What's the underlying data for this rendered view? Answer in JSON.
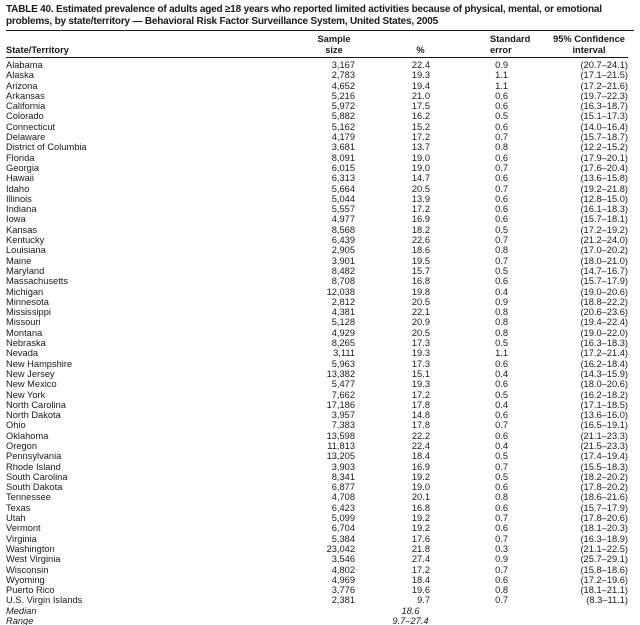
{
  "title": "TABLE 40. Estimated prevalence of adults aged ≥18 years who reported limited activities because of physical, mental, or emotional problems, by state/territory — Behavioral Risk Factor Surveillance System, United States, 2005",
  "table": {
    "header": {
      "state": "State/Territory",
      "sample": [
        "Sample",
        "size"
      ],
      "pct": "%",
      "se": [
        "Standard",
        "error"
      ],
      "ci": [
        "95% Confidence",
        "interval"
      ]
    },
    "rows": [
      {
        "state": "Alabama",
        "sample": "3,167",
        "pct": "22.4",
        "se": "0.9",
        "ci": "(20.7–24.1)"
      },
      {
        "state": "Alaska",
        "sample": "2,783",
        "pct": "19.3",
        "se": "1.1",
        "ci": "(17.1–21.5)"
      },
      {
        "state": "Arizona",
        "sample": "4,652",
        "pct": "19.4",
        "se": "1.1",
        "ci": "(17.2–21.6)"
      },
      {
        "state": "Arkansas",
        "sample": "5,216",
        "pct": "21.0",
        "se": "0.6",
        "ci": "(19.7–22.3)"
      },
      {
        "state": "California",
        "sample": "5,972",
        "pct": "17.5",
        "se": "0.6",
        "ci": "(16.3–18.7)"
      },
      {
        "state": "Colorado",
        "sample": "5,882",
        "pct": "16.2",
        "se": "0.5",
        "ci": "(15.1–17.3)"
      },
      {
        "state": "Connecticut",
        "sample": "5,162",
        "pct": "15.2",
        "se": "0.6",
        "ci": "(14.0–16.4)"
      },
      {
        "state": "Delaware",
        "sample": "4,179",
        "pct": "17.2",
        "se": "0.7",
        "ci": "(15.7–18.7)"
      },
      {
        "state": "District of Columbia",
        "sample": "3,681",
        "pct": "13.7",
        "se": "0.8",
        "ci": "(12.2–15.2)"
      },
      {
        "state": "Florida",
        "sample": "8,091",
        "pct": "19.0",
        "se": "0.6",
        "ci": "(17.9–20.1)"
      },
      {
        "state": "Georgia",
        "sample": "6,015",
        "pct": "19.0",
        "se": "0.7",
        "ci": "(17.6–20.4)"
      },
      {
        "state": "Hawaii",
        "sample": "6,313",
        "pct": "14.7",
        "se": "0.6",
        "ci": "(13.6–15.8)"
      },
      {
        "state": "Idaho",
        "sample": "5,664",
        "pct": "20.5",
        "se": "0.7",
        "ci": "(19.2–21.8)"
      },
      {
        "state": "Illinois",
        "sample": "5,044",
        "pct": "13.9",
        "se": "0.6",
        "ci": "(12.8–15.0)"
      },
      {
        "state": "Indiana",
        "sample": "5,557",
        "pct": "17.2",
        "se": "0.6",
        "ci": "(16.1–18.3)"
      },
      {
        "state": "Iowa",
        "sample": "4,977",
        "pct": "16.9",
        "se": "0.6",
        "ci": "(15.7–18.1)"
      },
      {
        "state": "Kansas",
        "sample": "8,568",
        "pct": "18.2",
        "se": "0.5",
        "ci": "(17.2–19.2)"
      },
      {
        "state": "Kentucky",
        "sample": "6,439",
        "pct": "22.6",
        "se": "0.7",
        "ci": "(21.2–24.0)"
      },
      {
        "state": "Louisiana",
        "sample": "2,905",
        "pct": "18.6",
        "se": "0.8",
        "ci": "(17.0–20.2)"
      },
      {
        "state": "Maine",
        "sample": "3,901",
        "pct": "19.5",
        "se": "0.7",
        "ci": "(18.0–21.0)"
      },
      {
        "state": "Maryland",
        "sample": "8,482",
        "pct": "15.7",
        "se": "0.5",
        "ci": "(14.7–16.7)"
      },
      {
        "state": "Massachusetts",
        "sample": "8,708",
        "pct": "16.8",
        "se": "0.6",
        "ci": "(15.7–17.9)"
      },
      {
        "state": "Michigan",
        "sample": "12,038",
        "pct": "19.8",
        "se": "0.4",
        "ci": "(19.0–20.6)"
      },
      {
        "state": "Minnesota",
        "sample": "2,812",
        "pct": "20.5",
        "se": "0.9",
        "ci": "(18.8–22.2)"
      },
      {
        "state": "Mississippi",
        "sample": "4,381",
        "pct": "22.1",
        "se": "0.8",
        "ci": "(20.6–23.6)"
      },
      {
        "state": "Missouri",
        "sample": "5,128",
        "pct": "20.9",
        "se": "0.8",
        "ci": "(19.4–22.4)"
      },
      {
        "state": "Montana",
        "sample": "4,929",
        "pct": "20.5",
        "se": "0.8",
        "ci": "(19.0–22.0)"
      },
      {
        "state": "Nebraska",
        "sample": "8,265",
        "pct": "17.3",
        "se": "0.5",
        "ci": "(16.3–18.3)"
      },
      {
        "state": "Nevada",
        "sample": "3,111",
        "pct": "19.3",
        "se": "1.1",
        "ci": "(17.2–21.4)"
      },
      {
        "state": "New Hampshire",
        "sample": "5,963",
        "pct": "17.3",
        "se": "0.6",
        "ci": "(16.2–18.4)"
      },
      {
        "state": "New Jersey",
        "sample": "13,382",
        "pct": "15.1",
        "se": "0.4",
        "ci": "(14.3–15.9)"
      },
      {
        "state": "New Mexico",
        "sample": "5,477",
        "pct": "19.3",
        "se": "0.6",
        "ci": "(18.0–20.6)"
      },
      {
        "state": "New York",
        "sample": "7,662",
        "pct": "17.2",
        "se": "0.5",
        "ci": "(16.2–18.2)"
      },
      {
        "state": "North Carolina",
        "sample": "17,186",
        "pct": "17.8",
        "se": "0.4",
        "ci": "(17.1–18.5)"
      },
      {
        "state": "North Dakota",
        "sample": "3,957",
        "pct": "14.8",
        "se": "0.6",
        "ci": "(13.6–16.0)"
      },
      {
        "state": "Ohio",
        "sample": "7,383",
        "pct": "17.8",
        "se": "0.7",
        "ci": "(16.5–19.1)"
      },
      {
        "state": "Oklahoma",
        "sample": "13,598",
        "pct": "22.2",
        "se": "0.6",
        "ci": "(21.1–23.3)"
      },
      {
        "state": "Oregon",
        "sample": "11,813",
        "pct": "22.4",
        "se": "0.4",
        "ci": "(21.5–23.3)"
      },
      {
        "state": "Pennsylvania",
        "sample": "13,205",
        "pct": "18.4",
        "se": "0.5",
        "ci": "(17.4–19.4)"
      },
      {
        "state": "Rhode Island",
        "sample": "3,903",
        "pct": "16.9",
        "se": "0.7",
        "ci": "(15.5–18.3)"
      },
      {
        "state": "South Carolina",
        "sample": "8,341",
        "pct": "19.2",
        "se": "0.5",
        "ci": "(18.2–20.2)"
      },
      {
        "state": "South Dakota",
        "sample": "6,877",
        "pct": "19.0",
        "se": "0.6",
        "ci": "(17.8–20.2)"
      },
      {
        "state": "Tennessee",
        "sample": "4,708",
        "pct": "20.1",
        "se": "0.8",
        "ci": "(18.6–21.6)"
      },
      {
        "state": "Texas",
        "sample": "6,423",
        "pct": "16.8",
        "se": "0.6",
        "ci": "(15.7–17.9)"
      },
      {
        "state": "Utah",
        "sample": "5,099",
        "pct": "19.2",
        "se": "0.7",
        "ci": "(17.8–20.6)"
      },
      {
        "state": "Vermont",
        "sample": "6,704",
        "pct": "19.2",
        "se": "0.6",
        "ci": "(18.1–20.3)"
      },
      {
        "state": "Virginia",
        "sample": "5,384",
        "pct": "17.6",
        "se": "0.7",
        "ci": "(16.3–18.9)"
      },
      {
        "state": "Washington",
        "sample": "23,042",
        "pct": "21.8",
        "se": "0.3",
        "ci": "(21.1–22.5)"
      },
      {
        "state": "West Virginia",
        "sample": "3,546",
        "pct": "27.4",
        "se": "0.9",
        "ci": "(25.7–29.1)"
      },
      {
        "state": "Wisconsin",
        "sample": "4,802",
        "pct": "17.2",
        "se": "0.7",
        "ci": "(15.8–18.6)"
      },
      {
        "state": "Wyoming",
        "sample": "4,969",
        "pct": "18.4",
        "se": "0.6",
        "ci": "(17.2–19.6)"
      },
      {
        "state": "Puerto Rico",
        "sample": "3,776",
        "pct": "19.6",
        "se": "0.8",
        "ci": "(18.1–21.1)"
      },
      {
        "state": "U.S. Virgin Islands",
        "sample": "2,381",
        "pct": "9.7",
        "se": "0.7",
        "ci": "(8.3–11.1)"
      },
      {
        "state": "Median",
        "sample": "",
        "pct": "18.6",
        "se": "",
        "ci": "",
        "italic": true
      },
      {
        "state": "Range",
        "sample": "",
        "pct": "9.7–27.4",
        "se": "",
        "ci": "",
        "italic": true
      }
    ]
  }
}
